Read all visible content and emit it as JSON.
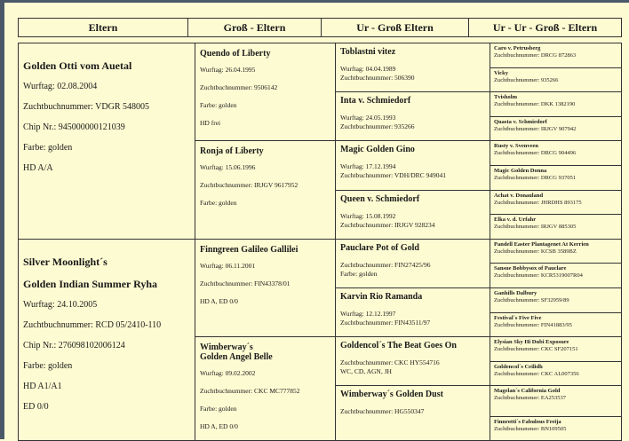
{
  "headers": [
    "Eltern",
    "Groß - Eltern",
    "Ur - Groß Eltern",
    "Ur - Ur - Groß - Eltern"
  ],
  "parents": [
    {
      "names": [
        "Golden Otti vom Auetal"
      ],
      "lines": [
        "Wurftag: 02.08.2004",
        "Zuchtbuchnummer: VDGR 548005",
        "Chip Nr.:  945000000121039",
        "Farbe: golden",
        "HD A/A"
      ]
    },
    {
      "names": [
        "Silver Moonlight´s",
        "Golden Indian Summer Ryha"
      ],
      "lines": [
        "Wurftag: 24.10.2005",
        "Zuchtbuchnummer: RCD 05/2410-110",
        "Chip Nr.:  276098102006124",
        "Farbe: golden",
        "HD A1/A1",
        "ED 0/0"
      ]
    }
  ],
  "grandparents": [
    {
      "name": "Quendo of Liberty",
      "lines": [
        "Wurftag: 26.04.1995",
        "Zuchtbuchnummer: 9506142",
        "Farbe: golden",
        "HD frei"
      ]
    },
    {
      "name": "Ronja of Liberty",
      "lines": [
        "Wurftag: 15.06.1996",
        "Zuchtbuchnummer: IRJGV 9617952",
        "Farbe: golden"
      ]
    },
    {
      "name": "Finngreen Galileo Gallilei",
      "lines": [
        "Wurftag: 06.11.2001",
        "Zuchtbuchnummer: FIN43378/01",
        "HD A, ED 0/0"
      ]
    },
    {
      "name": "Wimberway´s\nGolden Angel Belle",
      "lines": [
        "Wurftag: 09.02.2002",
        "Zuchtbuchnummer: CKC MC777852",
        "Farbe: golden",
        "HD A, ED 0/0"
      ]
    }
  ],
  "great_grandparents": [
    {
      "name": "Toblastni vitez",
      "lines": [
        "Wurftag: 04.04.1989",
        "Zuchtbuchnummer: 506390"
      ]
    },
    {
      "name": "Inta v. Schmiedorf",
      "lines": [
        "Wurftag: 24.05.1993",
        "Zuchtbuchnummer: 935266"
      ]
    },
    {
      "name": "Magic Golden Gino",
      "lines": [
        "Wurftag: 17.12.1994",
        "Zuchtbuchnummer: VDH/DRC 949041"
      ]
    },
    {
      "name": "Queen v. Schmiedorf",
      "lines": [
        "Wurftag: 15.08.1992",
        "Zuchtbuchnummer: IRJGV 928234"
      ]
    },
    {
      "name": "Pauclare Pot of Gold",
      "lines": [
        "Zuchtbuchnummer: FIN27425/96",
        "Farbe: golden"
      ]
    },
    {
      "name": "Karvin Rio Ramanda",
      "lines": [
        "Wurftag: 12.12.1997",
        "Zuchtbuchnummer: FIN43511/97"
      ]
    },
    {
      "name": "Goldencol´s The Beat Goes On",
      "lines": [
        "Zuchtbuchnummer: CKC HY554716",
        "WC, CD, AGN, JH"
      ]
    },
    {
      "name": "Wimberway´s Golden Dust",
      "lines": [
        "Zuchtbuchnummer: HG550347"
      ]
    }
  ],
  "great_great_grandparents": [
    {
      "name": "Caro v. Petrusberg",
      "reg": "Zuchtbuchnummer: DRCG 872863"
    },
    {
      "name": "Vicky",
      "reg": "Zuchtbuchnummer: 935266"
    },
    {
      "name": "Tvisholm",
      "reg": "Zuchtbuchnummer: DKK 1382190"
    },
    {
      "name": "Quasta v. Schmiedorf",
      "reg": "Zuchtbuchnummer:  IRJGV 907942"
    },
    {
      "name": "Rusty v. Svenveen",
      "reg": "Zuchtbuchnummer: DRCG 904496"
    },
    {
      "name": "Magic Golden Donna",
      "reg": "Zuchtbuchnummer: DRCG 937051"
    },
    {
      "name": "Achat v. Donauland",
      "reg": "Zuchtbuchnummer: JHRDHS 893175"
    },
    {
      "name": "Elka v. d. Urfahr",
      "reg": "Zuchtbuchnummer: IRJGV 885305"
    },
    {
      "name": "Pandell Easter Plantagenet At Kerrien",
      "reg": "Zuchtbuchnummer: KCSB 3589BZ"
    },
    {
      "name": "Sansue Bobbysox of Pauclare",
      "reg": "Zuchtbuchnummer: KCR5319007R04"
    },
    {
      "name": "Ganhills Dalbury",
      "reg": "Zuchtbuchnummer: SF32959/89"
    },
    {
      "name": "Festival´s Five Five",
      "reg": "Zuchtbuchnummer: FIN41883/95"
    },
    {
      "name": "Elysian Sky Hi Dubi Exposure",
      "reg": "Zuchtbuchnummer: CKC SF207151"
    },
    {
      "name": "Goldencol´s Ceilidh",
      "reg": "Zuchtbuchnummer: CKC AL007356"
    },
    {
      "name": "Magelan´s California Gold",
      "reg": "Zuchtbuchnummer: EA253537"
    },
    {
      "name": "Finnrotti´s Fabulous Freija",
      "reg": "Zuchtbuchnummer: BN109505"
    }
  ]
}
